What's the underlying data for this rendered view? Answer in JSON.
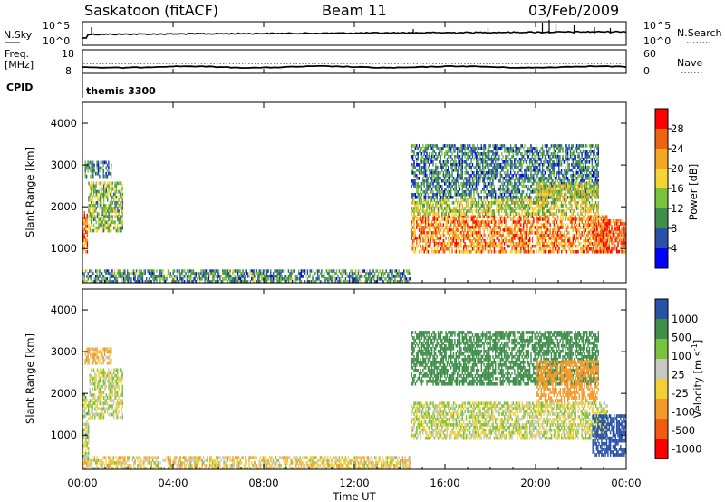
{
  "header": {
    "station": "Saskatoon (fitACF)",
    "beam": "Beam 11",
    "date": "03/Feb/2009"
  },
  "noise_panel": {
    "left_label": "N.Sky",
    "right_label": "N.Search",
    "left_ticks": [
      "10^5",
      "10^0"
    ],
    "right_ticks": [
      "10^5",
      "10^0"
    ]
  },
  "freq_panel": {
    "left_label_1": "Freq.",
    "left_label_2": "[MHz]",
    "right_label": "Nave",
    "left_ticks": [
      "18",
      "8"
    ],
    "right_ticks": [
      "60",
      "0"
    ]
  },
  "cpid": {
    "label": "CPID",
    "value": "themis 3300"
  },
  "colors": {
    "power_scale": [
      "#0000ff",
      "#2851a8",
      "#3f8f4a",
      "#79c23b",
      "#f3d534",
      "#f5a623",
      "#ef6410",
      "#ff0000"
    ],
    "velocity_scale": [
      "#ff0000",
      "#f25c12",
      "#f59a2a",
      "#f3d134",
      "#c8c8c2",
      "#79c23b",
      "#3f8f4a",
      "#2851a8"
    ]
  },
  "chart_data": [
    {
      "type": "heatmap",
      "title": "Power",
      "ylabel": "Slant Range [km]",
      "ylim": [
        180,
        4500
      ],
      "y_ticks": [
        "1000",
        "2000",
        "3000",
        "4000"
      ],
      "colorbar_label": "Power [dB]",
      "colorbar_ticks": [
        "4",
        "8",
        "12",
        "16",
        "20",
        "24",
        "28"
      ],
      "colorbar_range": [
        0,
        32
      ],
      "regions": [
        {
          "t": [
            0.0,
            0.25
          ],
          "r": [
            900,
            1900
          ],
          "value": 26
        },
        {
          "t": [
            0.25,
            1.8
          ],
          "r": [
            1400,
            2600
          ],
          "value": 14
        },
        {
          "t": [
            0.1,
            1.3
          ],
          "r": [
            2700,
            3100
          ],
          "value": 9
        },
        {
          "t": [
            0.0,
            14.5
          ],
          "r": [
            180,
            500
          ],
          "value": 10
        },
        {
          "t": [
            14.5,
            23.2
          ],
          "r": [
            900,
            1800
          ],
          "value": 24
        },
        {
          "t": [
            14.5,
            20.5
          ],
          "r": [
            1800,
            2200
          ],
          "value": 15
        },
        {
          "t": [
            14.5,
            22.8
          ],
          "r": [
            2200,
            3500
          ],
          "value": 9
        },
        {
          "t": [
            20.0,
            22.8
          ],
          "r": [
            1800,
            2600
          ],
          "value": 17
        },
        {
          "t": [
            22.5,
            24.0
          ],
          "r": [
            900,
            1700
          ],
          "value": 27
        }
      ]
    },
    {
      "type": "heatmap",
      "title": "Velocity",
      "ylabel": "Slant Range [km]",
      "ylim": [
        180,
        4500
      ],
      "y_ticks": [
        "1000",
        "2000",
        "3000",
        "4000"
      ],
      "colorbar_label": "Velocity [m s^-1]",
      "colorbar_ticks": [
        "1000",
        "500",
        "100",
        "25",
        "-25",
        "-100",
        "-500",
        "-1000"
      ],
      "regions": [
        {
          "t": [
            0.0,
            0.3
          ],
          "r": [
            400,
            2000
          ],
          "value": 25
        },
        {
          "t": [
            0.3,
            1.8
          ],
          "r": [
            1400,
            2600
          ],
          "value": 0
        },
        {
          "t": [
            0.1,
            1.3
          ],
          "r": [
            2700,
            3100
          ],
          "value": -100
        },
        {
          "t": [
            0.0,
            14.5
          ],
          "r": [
            180,
            500
          ],
          "value": -50
        },
        {
          "t": [
            14.5,
            23.2
          ],
          "r": [
            900,
            1800
          ],
          "value": 0
        },
        {
          "t": [
            14.5,
            22.8
          ],
          "r": [
            2200,
            3500
          ],
          "value": 300
        },
        {
          "t": [
            20.0,
            22.8
          ],
          "r": [
            1800,
            2800
          ],
          "value": -400
        },
        {
          "t": [
            22.5,
            24.0
          ],
          "r": [
            500,
            1500
          ],
          "value": 600
        }
      ]
    }
  ],
  "x_axis": {
    "ticks": [
      "00:00",
      "04:00",
      "08:00",
      "12:00",
      "16:00",
      "20:00",
      "00:00"
    ],
    "label": "Time UT",
    "range_hours": [
      0,
      24
    ]
  }
}
